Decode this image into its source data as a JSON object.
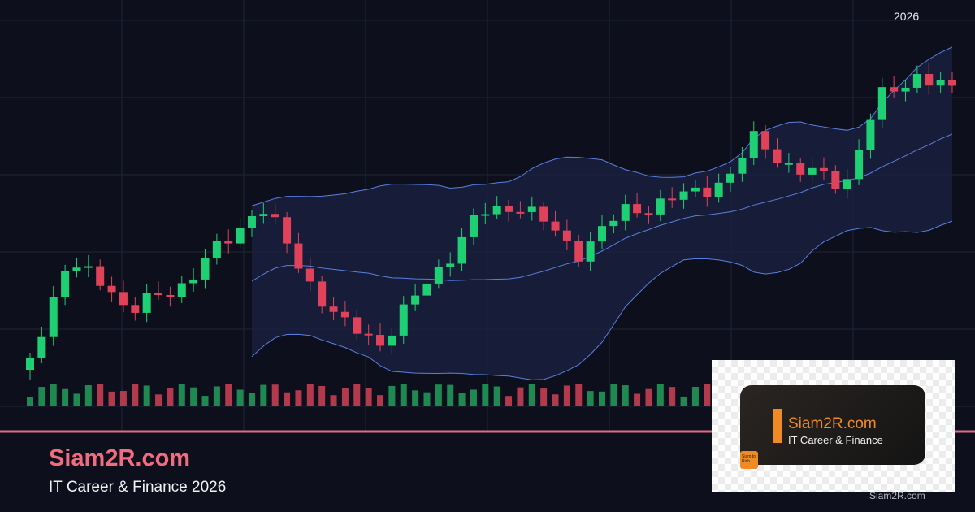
{
  "header": {
    "year": "2026"
  },
  "brand": {
    "title": "Siam2R.com",
    "subtitle": "IT Career & Finance 2026"
  },
  "logo": {
    "title": "Siam2R.com",
    "tagline": "IT Career & Finance",
    "badge": "Siam to Rich"
  },
  "watermark": "Siam2R.com"
}
